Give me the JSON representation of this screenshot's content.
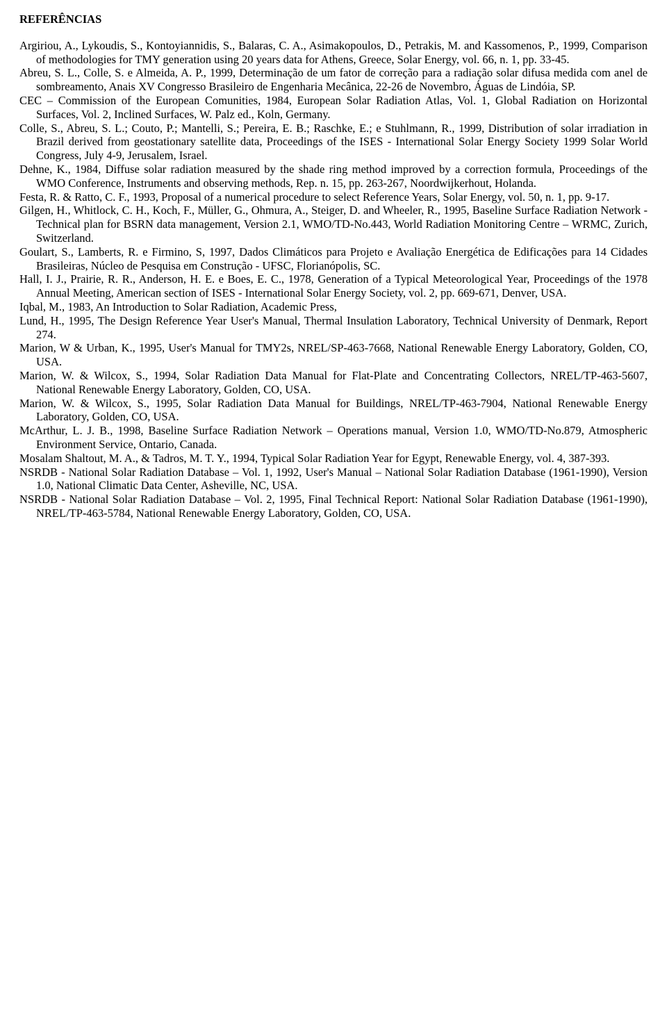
{
  "heading": "REFERÊNCIAS",
  "references": [
    "Argiriou, A., Lykoudis, S., Kontoyiannidis, S., Balaras, C. A., Asimakopoulos, D., Petrakis, M. and Kassomenos, P., 1999, Comparison of methodologies for TMY generation using 20 years data for Athens, Greece, Solar Energy, vol. 66, n. 1, pp. 33-45.",
    "Abreu, S. L., Colle, S. e Almeida, A. P., 1999, Determinação de um fator de correção para a radiação solar difusa medida com anel de sombreamento, Anais XV Congresso Brasileiro de Engenharia Mecânica, 22-26 de Novembro, Águas de Lindóia, SP.",
    "CEC – Commission of the European Comunities, 1984, European Solar Radiation Atlas, Vol. 1, Global Radiation on Horizontal Surfaces, Vol. 2, Inclined Surfaces, W. Palz ed., Koln, Germany.",
    "Colle, S., Abreu, S. L.; Couto, P.; Mantelli, S.; Pereira, E. B.; Raschke, E.; e Stuhlmann, R., 1999, Distribution of solar irradiation in Brazil derived from geostationary satellite data, Proceedings of the ISES - International Solar Energy Society 1999 Solar World Congress, July 4-9, Jerusalem, Israel.",
    "Dehne, K., 1984, Diffuse solar radiation measured by the shade ring method improved by a correction formula, Proceedings of the WMO Conference, Instruments and observing methods, Rep. n. 15, pp. 263-267, Noordwijkerhout, Holanda.",
    "Festa, R. & Ratto, C. F., 1993, Proposal of a numerical procedure to select Reference Years, Solar Energy, vol. 50, n. 1, pp. 9-17.",
    "Gilgen, H., Whitlock, C. H., Koch, F., Müller, G., Ohmura, A., Steiger, D. and Wheeler, R., 1995, Baseline Surface Radiation Network - Technical plan for BSRN data management, Version 2.1, WMO/TD-No.443, World Radiation Monitoring Centre – WRMC, Zurich, Switzerland.",
    "Goulart, S., Lamberts, R. e Firmino, S, 1997, Dados Climáticos para Projeto e Avaliação Energética de Edificações para 14 Cidades Brasileiras, Núcleo de Pesquisa em Construção - UFSC, Florianópolis, SC.",
    "Hall, I. J., Prairie, R. R., Anderson, H. E. e Boes, E. C., 1978, Generation of a Typical Meteorological Year, Proceedings of the 1978 Annual Meeting, American section of ISES - International Solar Energy Society, vol. 2, pp. 669-671, Denver, USA.",
    "Iqbal, M., 1983, An Introduction to Solar Radiation, Academic Press,",
    "Lund, H., 1995, The Design Reference Year User's Manual, Thermal Insulation Laboratory, Technical University of Denmark, Report 274.",
    "Marion, W & Urban, K., 1995, User's Manual for TMY2s, NREL/SP-463-7668, National Renewable Energy Laboratory, Golden, CO, USA.",
    "Marion, W. & Wilcox, S., 1994, Solar Radiation Data Manual for Flat-Plate and Concentrating Collectors, NREL/TP-463-5607, National Renewable Energy Laboratory, Golden, CO, USA.",
    "Marion, W. & Wilcox, S., 1995, Solar Radiation Data Manual for Buildings, NREL/TP-463-7904, National Renewable Energy Laboratory, Golden, CO, USA.",
    "McArthur, L. J. B., 1998, Baseline Surface Radiation Network – Operations manual, Version 1.0, WMO/TD-No.879, Atmospheric Environment Service, Ontario, Canada.",
    "Mosalam Shaltout, M. A., & Tadros, M. T. Y., 1994, Typical Solar Radiation Year for Egypt, Renewable Energy, vol. 4, 387-393.",
    "NSRDB - National Solar Radiation Database – Vol. 1, 1992, User's Manual – National Solar Radiation Database (1961-1990), Version 1.0, National Climatic Data Center, Asheville, NC, USA.",
    "NSRDB - National Solar Radiation Database – Vol. 2, 1995, Final Technical Report: National Solar Radiation Database (1961-1990), NREL/TP-463-5784, National Renewable Energy Laboratory, Golden, CO, USA."
  ]
}
